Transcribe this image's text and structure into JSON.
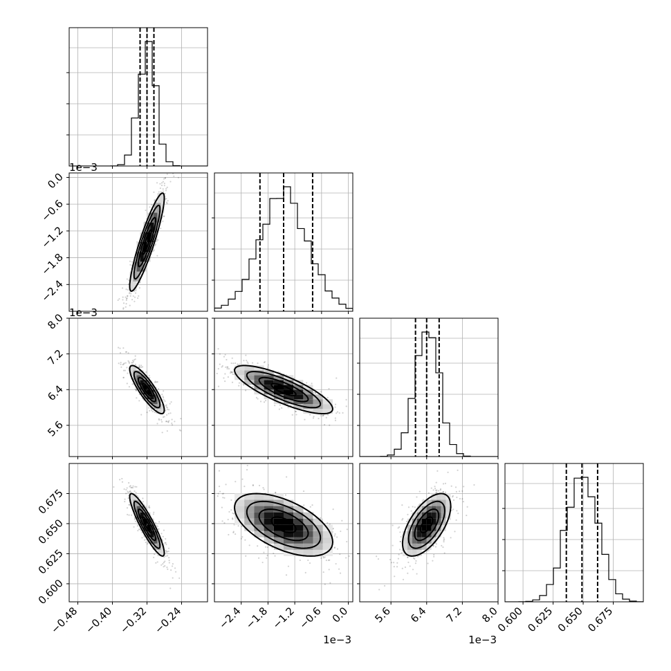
{
  "chart_data": {
    "type": "corner",
    "grid": true,
    "parameters": [
      {
        "range": [
          -0.5,
          -0.18
        ],
        "ticks": [
          -0.48,
          -0.4,
          -0.32,
          -0.24
        ],
        "tick_labels": [
          "−0.48",
          "−0.40",
          "−0.32",
          "−0.24"
        ],
        "offset_label": "",
        "median": -0.32,
        "q16": -0.336,
        "q84": -0.304,
        "sigma": 0.02
      },
      {
        "range": [
          -3.0,
          0.1
        ],
        "ticks": [
          -2.4,
          -1.8,
          -1.2,
          -0.6,
          0.0
        ],
        "tick_labels": [
          "−2.4",
          "−1.8",
          "−1.2",
          "−0.6",
          "0.0"
        ],
        "offset_label": "1e−3",
        "median": -1.45,
        "q16": -1.98,
        "q84": -0.8,
        "sigma": 0.55
      },
      {
        "range": [
          4.9,
          8.0
        ],
        "ticks": [
          5.6,
          6.4,
          7.2,
          8.0
        ],
        "tick_labels": [
          "5.6",
          "6.4",
          "7.2",
          "8.0"
        ],
        "offset_label": "1e−3",
        "median": 6.4,
        "q16": 6.15,
        "q84": 6.68,
        "sigma": 0.27
      },
      {
        "range": [
          0.585,
          0.7
        ],
        "ticks": [
          0.6,
          0.625,
          0.65,
          0.675
        ],
        "tick_labels": [
          "0.600",
          "0.625",
          "0.650",
          "0.675"
        ],
        "offset_label": "",
        "median": 0.649,
        "q16": 0.636,
        "q84": 0.662,
        "sigma": 0.013
      }
    ],
    "correlations": [
      {
        "pair": [
          1,
          0
        ],
        "rho": 0.9
      },
      {
        "pair": [
          2,
          0
        ],
        "rho": -0.85
      },
      {
        "pair": [
          2,
          1
        ],
        "rho": -0.8
      },
      {
        "pair": [
          3,
          0
        ],
        "rho": -0.9
      },
      {
        "pair": [
          3,
          1
        ],
        "rho": -0.55
      },
      {
        "pair": [
          3,
          2
        ],
        "rho": 0.6
      }
    ]
  }
}
